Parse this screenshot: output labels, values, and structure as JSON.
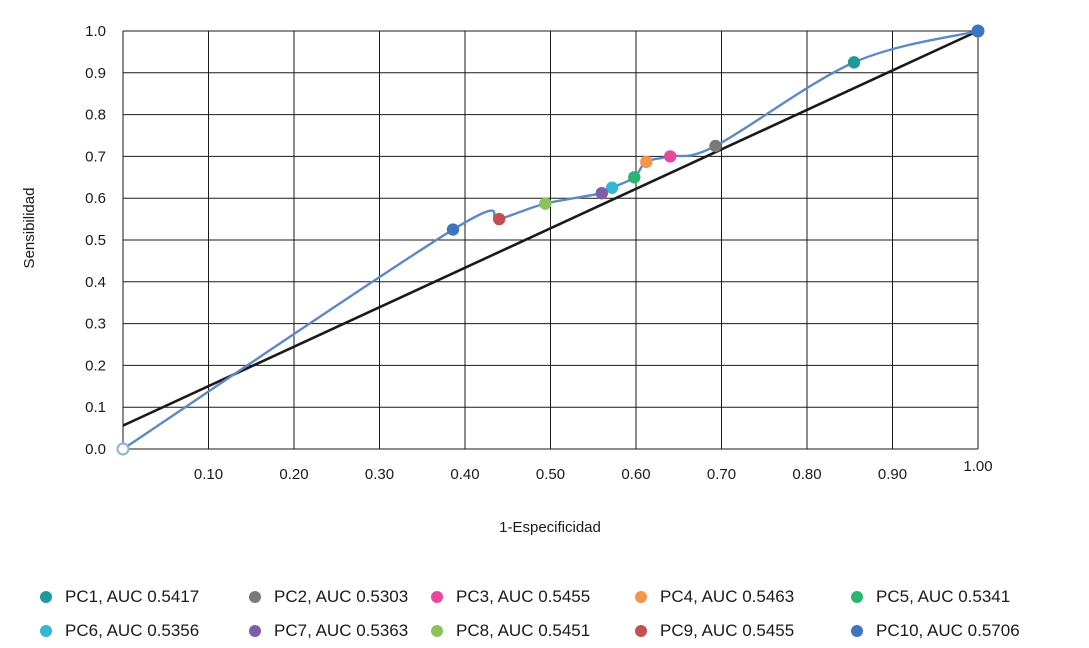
{
  "chart_data": {
    "type": "line",
    "title": "",
    "xlabel": "1-Especificidad",
    "ylabel": "Sensibilidad",
    "xlim": [
      0,
      1.0
    ],
    "ylim": [
      0,
      1.0
    ],
    "grid": true,
    "legend_position": "bottom",
    "x_ticks": [
      "0.10",
      "0.20",
      "0.30",
      "0.40",
      "0.50",
      "0.60",
      "0.70",
      "0.80",
      "0.90",
      "1.00"
    ],
    "y_ticks": [
      "0.0",
      "0.1",
      "0.2",
      "0.3",
      "0.4",
      "0.5",
      "0.6",
      "0.7",
      "0.8",
      "0.9",
      "1.0"
    ],
    "roc_curve": {
      "color": "#5b8ac4",
      "x": [
        0.0,
        0.386,
        0.44,
        0.494,
        0.56,
        0.572,
        0.598,
        0.612,
        0.64,
        0.693,
        0.855,
        1.0
      ],
      "y": [
        0.0,
        0.525,
        0.55,
        0.587,
        0.612,
        0.625,
        0.65,
        0.687,
        0.7,
        0.725,
        0.925,
        1.0
      ]
    },
    "reference_line": {
      "color": "#1a1a1a",
      "x": [
        0.0,
        1.0
      ],
      "y": [
        0.056,
        1.0
      ]
    },
    "series": [
      {
        "name": "PC1, AUC 0.5417",
        "color": "#1f9a9a",
        "x": 0.855,
        "y": 0.925
      },
      {
        "name": "PC2, AUC 0.5303",
        "color": "#7a7a7a",
        "x": 0.693,
        "y": 0.725
      },
      {
        "name": "PC3, AUC 0.5455",
        "color": "#e8489c",
        "x": 0.64,
        "y": 0.7
      },
      {
        "name": "PC4, AUC 0.5463",
        "color": "#f5954a",
        "x": 0.612,
        "y": 0.687
      },
      {
        "name": "PC5, AUC 0.5341",
        "color": "#27b56f",
        "x": 0.598,
        "y": 0.65
      },
      {
        "name": "PC6, AUC 0.5356",
        "color": "#35b6d2",
        "x": 0.572,
        "y": 0.625
      },
      {
        "name": "PC7, AUC 0.5363",
        "color": "#7e5ea8",
        "x": 0.56,
        "y": 0.612
      },
      {
        "name": "PC8, AUC 0.5451",
        "color": "#8dc15a",
        "x": 0.494,
        "y": 0.587
      },
      {
        "name": "PC9, AUC 0.5455",
        "color": "#c44f52",
        "x": 0.44,
        "y": 0.55
      },
      {
        "name": "PC10, AUC 0.5706",
        "color": "#3f74c1",
        "x": 0.386,
        "y": 0.525
      }
    ],
    "endpoints": [
      {
        "x": 0.0,
        "y": 0.0,
        "color": "#8fb0dd",
        "hollow": true
      },
      {
        "x": 1.0,
        "y": 1.0,
        "color": "#3f74c1",
        "hollow": false
      }
    ]
  }
}
